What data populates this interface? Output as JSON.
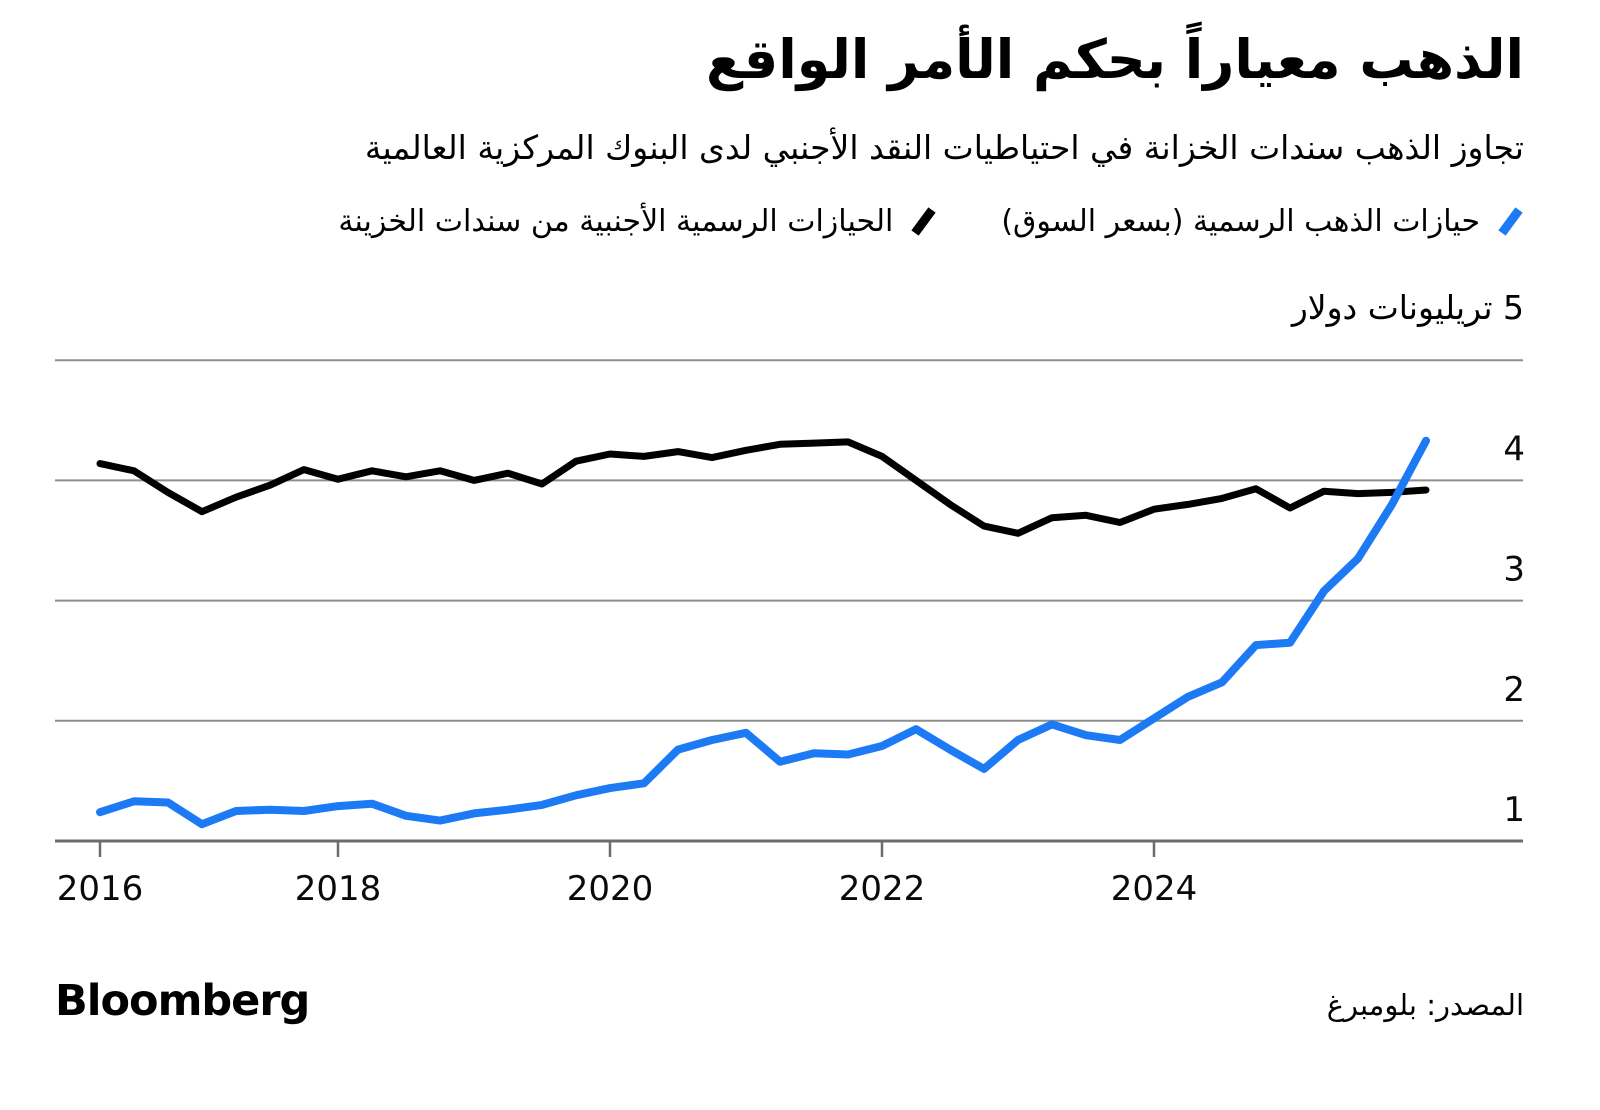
{
  "header": {
    "title": "الذهب معياراً بحكم الأمر الواقع",
    "subtitle": "تجاوز الذهب سندات الخزانة في احتياطيات النقد الأجنبي لدى البنوك المركزية العالمية"
  },
  "legend": {
    "items": [
      {
        "label": "حيازات الذهب الرسمية (بسعر السوق)",
        "color": "#1d7af5",
        "icon": "slash-mark"
      },
      {
        "label": "الحيازات الرسمية الأجنبية من سندات الخزينة",
        "color": "#000000",
        "icon": "slash-mark"
      }
    ]
  },
  "chart_data": {
    "type": "line",
    "title": "الذهب معياراً بحكم الأمر الواقع",
    "unit_label": "5 تريليونات دولار",
    "y_axis": {
      "base": 1,
      "top": 5,
      "ticks": [
        1,
        2,
        3,
        4
      ],
      "gridlines": [
        2,
        3,
        4,
        5
      ]
    },
    "x_axis": {
      "ticks": [
        {
          "label": "2016",
          "t": 2016.25
        },
        {
          "label": "2018",
          "t": 2018
        },
        {
          "label": "2020",
          "t": 2020
        },
        {
          "label": "2022",
          "t": 2022
        },
        {
          "label": "2024",
          "t": 2024
        }
      ]
    },
    "series": [
      {
        "name": "حيازات الذهب الرسمية (بسعر السوق)",
        "color": "#1d7af5",
        "width": 8,
        "points": [
          [
            2016.25,
            1.24
          ],
          [
            2016.5,
            1.33
          ],
          [
            2016.75,
            1.32
          ],
          [
            2017.0,
            1.14
          ],
          [
            2017.25,
            1.25
          ],
          [
            2017.5,
            1.26
          ],
          [
            2017.75,
            1.25
          ],
          [
            2018.0,
            1.29
          ],
          [
            2018.25,
            1.31
          ],
          [
            2018.5,
            1.21
          ],
          [
            2018.75,
            1.17
          ],
          [
            2019.0,
            1.23
          ],
          [
            2019.25,
            1.26
          ],
          [
            2019.5,
            1.3
          ],
          [
            2019.75,
            1.38
          ],
          [
            2020.0,
            1.44
          ],
          [
            2020.25,
            1.48
          ],
          [
            2020.5,
            1.76
          ],
          [
            2020.75,
            1.84
          ],
          [
            2021.0,
            1.9
          ],
          [
            2021.25,
            1.66
          ],
          [
            2021.5,
            1.73
          ],
          [
            2021.75,
            1.72
          ],
          [
            2022.0,
            1.79
          ],
          [
            2022.25,
            1.93
          ],
          [
            2022.5,
            1.76
          ],
          [
            2022.75,
            1.6
          ],
          [
            2023.0,
            1.84
          ],
          [
            2023.25,
            1.97
          ],
          [
            2023.5,
            1.88
          ],
          [
            2023.75,
            1.84
          ],
          [
            2024.0,
            2.02
          ],
          [
            2024.25,
            2.2
          ],
          [
            2024.5,
            2.32
          ],
          [
            2024.75,
            2.63
          ],
          [
            2025.0,
            2.65
          ],
          [
            2025.25,
            3.08
          ],
          [
            2025.5,
            3.35
          ],
          [
            2025.75,
            3.8
          ],
          [
            2026.0,
            4.33
          ]
        ]
      },
      {
        "name": "الحيازات الرسمية الأجنبية من سندات الخزينة",
        "color": "#000000",
        "width": 7,
        "points": [
          [
            2016.25,
            4.14
          ],
          [
            2016.5,
            4.08
          ],
          [
            2016.75,
            3.9
          ],
          [
            2017.0,
            3.74
          ],
          [
            2017.25,
            3.86
          ],
          [
            2017.5,
            3.96
          ],
          [
            2017.75,
            4.09
          ],
          [
            2018.0,
            4.01
          ],
          [
            2018.25,
            4.08
          ],
          [
            2018.5,
            4.03
          ],
          [
            2018.75,
            4.08
          ],
          [
            2019.0,
            4.0
          ],
          [
            2019.25,
            4.06
          ],
          [
            2019.5,
            3.97
          ],
          [
            2019.75,
            4.16
          ],
          [
            2020.0,
            4.22
          ],
          [
            2020.25,
            4.2
          ],
          [
            2020.5,
            4.24
          ],
          [
            2020.75,
            4.19
          ],
          [
            2021.0,
            4.25
          ],
          [
            2021.25,
            4.3
          ],
          [
            2021.5,
            4.31
          ],
          [
            2021.75,
            4.32
          ],
          [
            2022.0,
            4.2
          ],
          [
            2022.25,
            4.0
          ],
          [
            2022.5,
            3.8
          ],
          [
            2022.75,
            3.62
          ],
          [
            2023.0,
            3.56
          ],
          [
            2023.25,
            3.69
          ],
          [
            2023.5,
            3.71
          ],
          [
            2023.75,
            3.65
          ],
          [
            2024.0,
            3.76
          ],
          [
            2024.25,
            3.8
          ],
          [
            2024.5,
            3.85
          ],
          [
            2024.75,
            3.93
          ],
          [
            2025.0,
            3.77
          ],
          [
            2025.25,
            3.91
          ],
          [
            2025.5,
            3.89
          ],
          [
            2025.75,
            3.9
          ],
          [
            2026.0,
            3.92
          ]
        ]
      }
    ]
  },
  "footer": {
    "brand": "Bloomberg",
    "source": "المصدر: بلومبرغ"
  },
  "colors": {
    "grid": "#8d8d8d",
    "axis": "#6b6b6b",
    "tick": "#6b6b6b",
    "text": "#000000"
  }
}
